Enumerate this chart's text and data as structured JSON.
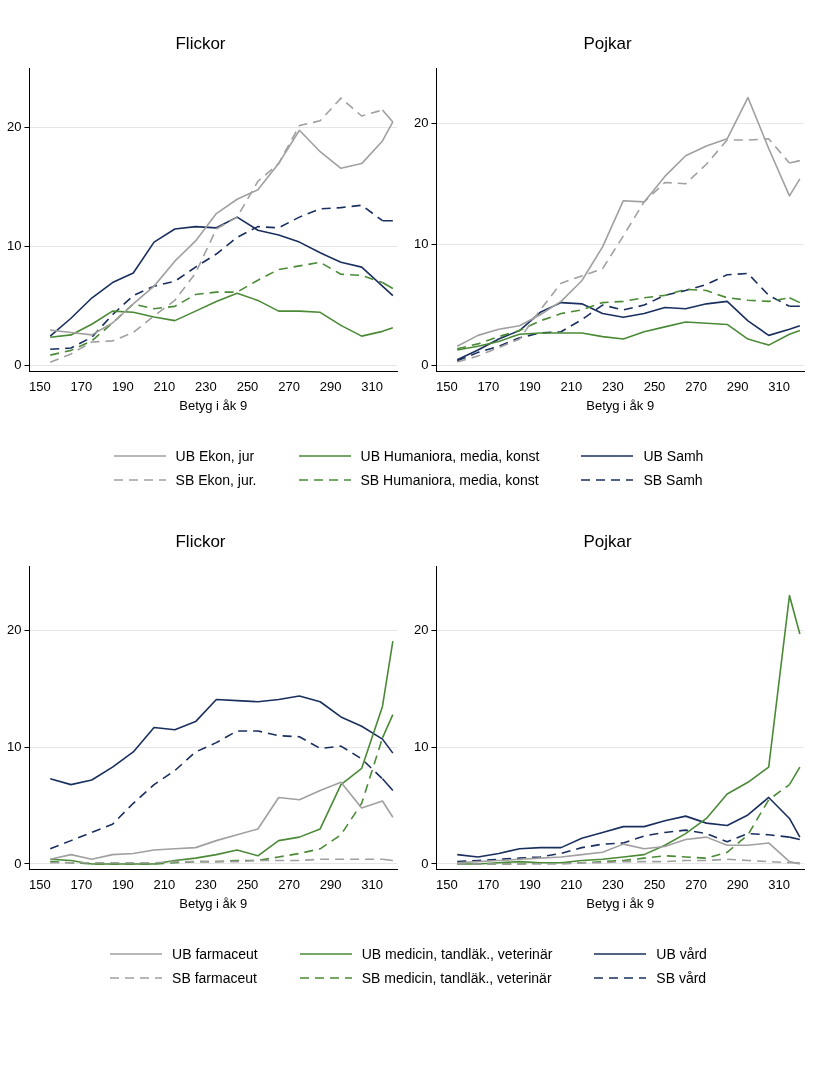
{
  "chart_data": [
    {
      "type": "line",
      "title": "Flickor",
      "xlabel": "Betyg i åk 9",
      "x": [
        155,
        165,
        175,
        185,
        195,
        205,
        215,
        225,
        235,
        245,
        255,
        265,
        275,
        285,
        295,
        305,
        315,
        320
      ],
      "xlim": [
        145,
        322
      ],
      "xticks": [
        150,
        170,
        190,
        210,
        230,
        250,
        270,
        290,
        310
      ],
      "ylim": [
        -0.5,
        25
      ],
      "yticks": [
        0,
        10,
        20
      ],
      "grid": "y",
      "legend": "bottom",
      "series": [
        {
          "name": "UB Ekon, jur",
          "color": "#a0a0a0",
          "line_style": "solid",
          "values": [
            3.0,
            2.8,
            2.6,
            3.6,
            5.2,
            6.7,
            8.8,
            10.5,
            12.8,
            14.0,
            14.8,
            17.0,
            19.8,
            18.0,
            16.6,
            17.0,
            18.9,
            20.5
          ]
        },
        {
          "name": "SB Ekon, jur.",
          "color": "#a0a0a0",
          "line_style": "dashed",
          "values": [
            0.3,
            1.0,
            2.0,
            2.1,
            2.8,
            4.2,
            5.5,
            7.8,
            11.5,
            12.5,
            15.5,
            17.0,
            20.2,
            20.6,
            22.5,
            21.0,
            21.5,
            20.5
          ]
        },
        {
          "name": "UB Humaniora, media, konst",
          "color": "#4a8a36",
          "line_style": "solid",
          "values": [
            2.4,
            2.6,
            3.5,
            4.6,
            4.5,
            4.1,
            3.8,
            4.6,
            5.4,
            6.1,
            5.5,
            4.6,
            4.6,
            4.5,
            3.4,
            2.5,
            2.9,
            3.2
          ]
        },
        {
          "name": "SB Humaniora, media, konst",
          "color": "#4a8a36",
          "line_style": "dashed",
          "values": [
            0.9,
            1.3,
            2.1,
            3.6,
            5.2,
            4.8,
            5.0,
            6.0,
            6.2,
            6.2,
            7.2,
            8.1,
            8.4,
            8.7,
            7.7,
            7.6,
            7.0,
            6.5
          ]
        },
        {
          "name": "UB Samh",
          "color": "#1a2f5e",
          "line_style": "solid",
          "values": [
            2.5,
            4.0,
            5.7,
            7.0,
            7.8,
            10.4,
            11.5,
            11.7,
            11.6,
            12.5,
            11.4,
            11.0,
            10.4,
            9.5,
            8.7,
            8.3,
            6.7,
            5.9
          ]
        },
        {
          "name": "SB Samh",
          "color": "#1a2f5e",
          "line_style": "dashed",
          "values": [
            1.4,
            1.5,
            2.4,
            4.3,
            5.9,
            6.7,
            7.1,
            8.3,
            9.4,
            10.8,
            11.7,
            11.6,
            12.5,
            13.2,
            13.3,
            13.5,
            12.2,
            12.2
          ]
        }
      ]
    },
    {
      "type": "line",
      "title": "Pojkar",
      "xlabel": "Betyg i åk 9",
      "x": [
        155,
        165,
        175,
        185,
        195,
        205,
        215,
        225,
        235,
        245,
        255,
        265,
        275,
        285,
        295,
        305,
        315,
        320
      ],
      "xlim": [
        145,
        322
      ],
      "xticks": [
        150,
        170,
        190,
        210,
        230,
        250,
        270,
        290,
        310
      ],
      "ylim": [
        -0.5,
        24.5
      ],
      "yticks": [
        0,
        10,
        20
      ],
      "grid": "y",
      "series": [
        {
          "color": "#a0a0a0",
          "line_style": "solid",
          "values": [
            1.6,
            2.5,
            3.0,
            3.3,
            4.2,
            5.3,
            7.0,
            9.8,
            13.6,
            13.5,
            15.6,
            17.3,
            18.1,
            18.7,
            22.1,
            17.9,
            14.0,
            15.4
          ]
        },
        {
          "color": "#a0a0a0",
          "line_style": "dashed",
          "values": [
            0.3,
            0.8,
            1.5,
            2.2,
            4.6,
            6.8,
            7.4,
            8.0,
            10.7,
            13.5,
            15.1,
            15.0,
            16.6,
            18.6,
            18.6,
            18.7,
            16.7,
            16.9
          ]
        },
        {
          "color": "#4a8a36",
          "line_style": "solid",
          "values": [
            1.3,
            1.6,
            2.0,
            2.6,
            2.7,
            2.7,
            2.7,
            2.4,
            2.2,
            2.8,
            3.2,
            3.6,
            3.5,
            3.4,
            2.2,
            1.7,
            2.6,
            2.9
          ]
        },
        {
          "color": "#4a8a36",
          "line_style": "dashed",
          "values": [
            1.4,
            1.8,
            2.4,
            2.9,
            3.7,
            4.3,
            4.6,
            5.2,
            5.3,
            5.6,
            5.8,
            6.3,
            6.2,
            5.6,
            5.4,
            5.3,
            5.6,
            5.2
          ]
        },
        {
          "color": "#1a2f5e",
          "line_style": "solid",
          "values": [
            0.5,
            1.3,
            2.2,
            2.9,
            4.4,
            5.2,
            5.1,
            4.3,
            4.0,
            4.3,
            4.8,
            4.7,
            5.1,
            5.3,
            3.7,
            2.5,
            3.0,
            3.3
          ]
        },
        {
          "color": "#1a2f5e",
          "line_style": "dashed",
          "values": [
            0.4,
            1.1,
            1.6,
            2.3,
            2.7,
            2.8,
            3.8,
            5.0,
            4.6,
            5.0,
            5.8,
            6.2,
            6.7,
            7.5,
            7.6,
            5.8,
            4.9,
            4.9
          ]
        }
      ]
    },
    {
      "type": "line",
      "title": "Flickor",
      "xlabel": "Betyg i åk 9",
      "x": [
        155,
        165,
        175,
        185,
        195,
        205,
        215,
        225,
        235,
        245,
        255,
        265,
        275,
        285,
        295,
        305,
        315,
        320
      ],
      "xlim": [
        145,
        322
      ],
      "xticks": [
        150,
        170,
        190,
        210,
        230,
        250,
        270,
        290,
        310
      ],
      "ylim": [
        -0.5,
        25.5
      ],
      "yticks": [
        0,
        10,
        20
      ],
      "grid": "y",
      "legend": "bottom",
      "series": [
        {
          "name": "UB farmaceut",
          "color": "#a0a0a0",
          "line_style": "solid",
          "values": [
            0.4,
            0.8,
            0.4,
            0.8,
            0.9,
            1.2,
            1.3,
            1.4,
            2.0,
            2.5,
            3.0,
            5.7,
            5.5,
            6.3,
            7.0,
            4.8,
            5.4,
            4.0
          ]
        },
        {
          "name": "SB farmaceut",
          "color": "#a0a0a0",
          "line_style": "dashed",
          "values": [
            0.1,
            0.1,
            0.1,
            0.1,
            0.1,
            0.1,
            0.2,
            0.2,
            0.2,
            0.2,
            0.3,
            0.3,
            0.3,
            0.4,
            0.4,
            0.4,
            0.4,
            0.3
          ]
        },
        {
          "name": "UB medicin, tandläk., veterinär",
          "color": "#4a8a36",
          "line_style": "solid",
          "values": [
            0.4,
            0.3,
            0.0,
            0.0,
            0.0,
            0.0,
            0.3,
            0.5,
            0.8,
            1.2,
            0.7,
            2.0,
            2.3,
            3.0,
            6.8,
            8.2,
            13.5,
            19.1
          ]
        },
        {
          "name": "SB medicin, tandläk., veterinär",
          "color": "#4a8a36",
          "line_style": "dashed",
          "values": [
            0.2,
            0.1,
            0.0,
            0.0,
            0.0,
            0.0,
            0.1,
            0.2,
            0.2,
            0.3,
            0.3,
            0.6,
            0.9,
            1.3,
            2.5,
            5.2,
            10.8,
            12.8
          ]
        },
        {
          "name": "UB vård",
          "color": "#1a2f5e",
          "line_style": "solid",
          "values": [
            7.3,
            6.8,
            7.2,
            8.3,
            9.6,
            11.7,
            11.5,
            12.2,
            14.1,
            14.0,
            13.9,
            14.1,
            14.4,
            13.9,
            12.6,
            11.8,
            10.7,
            9.5
          ]
        },
        {
          "name": "SB vård",
          "color": "#1a2f5e",
          "line_style": "dashed",
          "values": [
            1.3,
            2.0,
            2.7,
            3.4,
            5.2,
            6.8,
            8.0,
            9.6,
            10.4,
            11.4,
            11.4,
            11.0,
            10.9,
            9.9,
            10.1,
            9.0,
            7.3,
            6.3
          ]
        }
      ]
    },
    {
      "type": "line",
      "title": "Pojkar",
      "xlabel": "Betyg i åk 9",
      "x": [
        155,
        165,
        175,
        185,
        195,
        205,
        215,
        225,
        235,
        245,
        255,
        265,
        275,
        285,
        295,
        305,
        315,
        320
      ],
      "xlim": [
        145,
        322
      ],
      "xticks": [
        150,
        170,
        190,
        210,
        230,
        250,
        270,
        290,
        310
      ],
      "ylim": [
        -0.5,
        25.5
      ],
      "yticks": [
        0,
        10,
        20
      ],
      "grid": "y",
      "series": [
        {
          "color": "#a0a0a0",
          "line_style": "solid",
          "values": [
            0.1,
            0.2,
            0.3,
            0.4,
            0.5,
            0.6,
            0.8,
            1.0,
            1.7,
            1.3,
            1.5,
            2.1,
            2.3,
            1.6,
            1.6,
            1.8,
            0.2,
            0.0
          ]
        },
        {
          "color": "#a0a0a0",
          "line_style": "dashed",
          "values": [
            0.0,
            0.0,
            0.0,
            0.0,
            0.0,
            0.0,
            0.1,
            0.1,
            0.2,
            0.2,
            0.2,
            0.3,
            0.3,
            0.4,
            0.3,
            0.2,
            0.1,
            0.1
          ]
        },
        {
          "color": "#4a8a36",
          "line_style": "solid",
          "values": [
            0.0,
            0.0,
            0.1,
            0.2,
            0.1,
            0.1,
            0.3,
            0.4,
            0.6,
            0.8,
            1.6,
            2.6,
            3.9,
            6.0,
            7.0,
            8.3,
            23.0,
            19.7
          ]
        },
        {
          "color": "#4a8a36",
          "line_style": "dashed",
          "values": [
            0.0,
            0.0,
            0.0,
            0.0,
            0.1,
            0.1,
            0.1,
            0.2,
            0.3,
            0.5,
            0.7,
            0.6,
            0.5,
            1.0,
            2.5,
            5.5,
            6.8,
            8.3
          ]
        },
        {
          "color": "#1a2f5e",
          "line_style": "solid",
          "values": [
            0.8,
            0.6,
            0.9,
            1.3,
            1.4,
            1.4,
            2.2,
            2.7,
            3.2,
            3.2,
            3.7,
            4.1,
            3.5,
            3.3,
            4.2,
            5.7,
            3.9,
            2.3
          ]
        },
        {
          "color": "#1a2f5e",
          "line_style": "dashed",
          "values": [
            0.2,
            0.3,
            0.4,
            0.5,
            0.6,
            0.9,
            1.4,
            1.7,
            1.8,
            2.4,
            2.7,
            2.9,
            2.6,
            1.9,
            2.6,
            2.5,
            2.3,
            2.1
          ]
        }
      ]
    }
  ]
}
